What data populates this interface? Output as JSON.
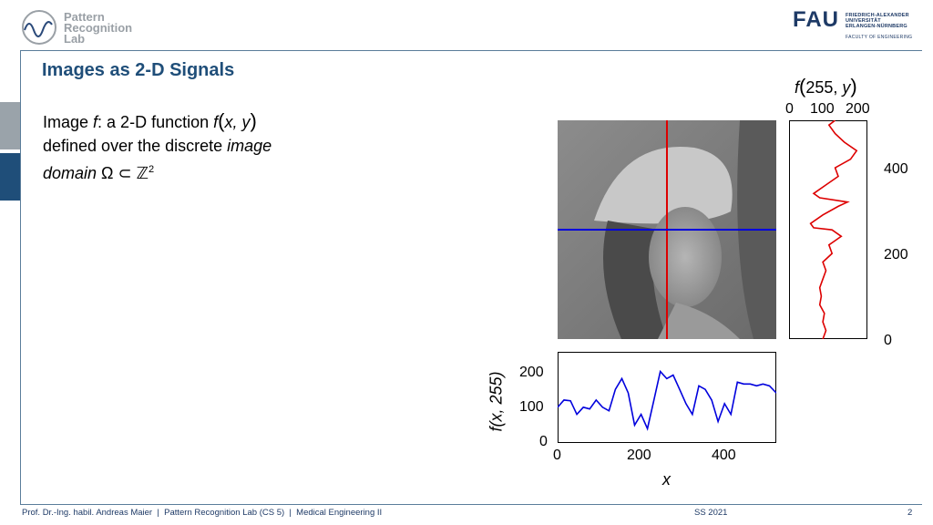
{
  "header": {
    "lab_logo_lines": [
      "Pattern",
      "Recognition",
      "Lab"
    ],
    "fau_logo": "FAU",
    "fau_university_lines": [
      "FRIEDRICH-ALEXANDER",
      "UNIVERSITÄT",
      "ERLANGEN-NÜRNBERG"
    ],
    "fau_faculty": "FACULTY OF ENGINEERING"
  },
  "slide": {
    "title": "Images as 2-D Signals",
    "text": {
      "l1_a": "Image ",
      "l1_f": "f",
      "l1_b": ": a 2-D function ",
      "l1_func": "f",
      "l1_args": "x, y",
      "l2_a": "defined over the discrete ",
      "l2_it": "image",
      "l3_it": "domain",
      "l3_math": " Ω ⊂ ℤ",
      "l3_sup": "2"
    }
  },
  "figure": {
    "top_label_f": "f",
    "top_label_args": "255, y",
    "bottom_ylabel": "f(x, 255)",
    "bottom_xlabel": "x",
    "top_ticks": [
      "0",
      "100",
      "200"
    ],
    "right_ticks": [
      "400",
      "200",
      "0"
    ],
    "bottom_yticks": [
      "200",
      "100",
      "0"
    ],
    "bottom_xticks": [
      "0",
      "200",
      "400"
    ],
    "colors": {
      "row_profile": "#0000dd",
      "column_profile": "#dd0000",
      "image_gray": "#8a8a8a"
    }
  },
  "chart_data": [
    {
      "type": "line",
      "title": "",
      "xlabel": "x",
      "ylabel": "f(x, 255)",
      "xlim": [
        0,
        511
      ],
      "ylim": [
        0,
        255
      ],
      "series": [
        {
          "x": [
            0,
            15,
            30,
            45,
            60,
            75,
            90,
            105,
            120,
            135,
            150,
            165,
            180,
            195,
            210,
            225,
            240,
            255,
            270,
            285,
            300,
            315,
            330,
            345,
            360,
            375,
            390,
            405,
            420,
            435,
            450,
            465,
            480,
            495,
            511
          ],
          "values": [
            100,
            120,
            118,
            80,
            100,
            95,
            120,
            100,
            90,
            150,
            180,
            140,
            50,
            80,
            40,
            120,
            200,
            180,
            190,
            150,
            110,
            80,
            160,
            150,
            120,
            60,
            110,
            80,
            170,
            165,
            165,
            160,
            165,
            160,
            140
          ]
        }
      ]
    },
    {
      "type": "line",
      "title": "",
      "xlabel": "f(255, y)",
      "ylabel": "",
      "xlim": [
        0,
        255
      ],
      "ylim": [
        0,
        511
      ],
      "series": [
        {
          "x": [
            110,
            120,
            110,
            115,
            100,
            105,
            100,
            110,
            120,
            110,
            140,
            130,
            150,
            170,
            140,
            80,
            70,
            110,
            160,
            190,
            100,
            80,
            120,
            160,
            150,
            200,
            220,
            180,
            150,
            130,
            150
          ],
          "y": [
            0,
            20,
            40,
            60,
            80,
            100,
            120,
            140,
            160,
            180,
            200,
            220,
            230,
            240,
            255,
            260,
            270,
            290,
            310,
            320,
            330,
            340,
            360,
            380,
            400,
            420,
            440,
            460,
            480,
            500,
            511
          ]
        }
      ]
    }
  ]
}
